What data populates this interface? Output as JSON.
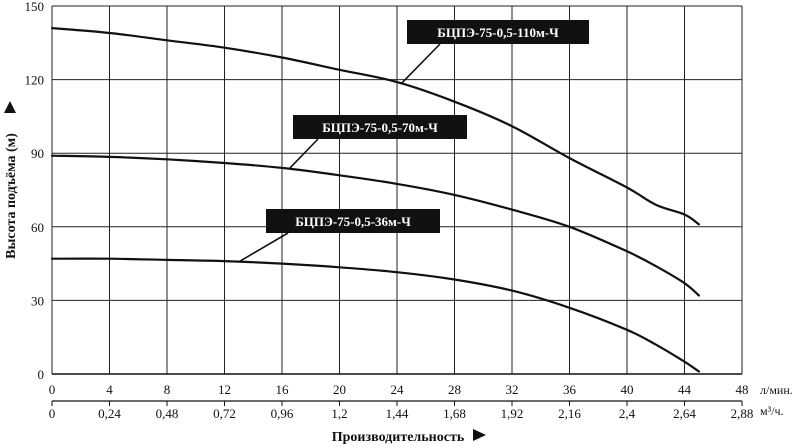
{
  "chart_data": {
    "type": "line",
    "title": "",
    "xlabel": "Производительность",
    "ylabel": "Высота подъёма (м)",
    "x_unit_primary": "л/мин.",
    "x_unit_secondary": "м³/ч.",
    "xlim": [
      0,
      48
    ],
    "ylim": [
      0,
      150
    ],
    "x_ticks": [
      0,
      4,
      8,
      12,
      16,
      20,
      24,
      28,
      32,
      36,
      40,
      44,
      48
    ],
    "x_ticks_secondary": [
      "0",
      "0,24",
      "0,48",
      "0,72",
      "0,96",
      "1,2",
      "1,44",
      "1,68",
      "1,92",
      "2,16",
      "2,4",
      "2,64",
      "2,88"
    ],
    "y_ticks": [
      0,
      30,
      60,
      90,
      120,
      150
    ],
    "grid": true,
    "series": [
      {
        "name": "БЦПЭ-75-0,5-110м-Ч",
        "color": "#111111",
        "x": [
          0,
          4,
          8,
          12,
          16,
          20,
          24,
          28,
          32,
          36,
          40,
          42,
          44,
          45
        ],
        "y": [
          141,
          139,
          136,
          133,
          129,
          124,
          119,
          111,
          101,
          88,
          76,
          69,
          65,
          61
        ]
      },
      {
        "name": "БЦПЭ-75-0,5-70м-Ч",
        "color": "#111111",
        "x": [
          0,
          4,
          8,
          12,
          16,
          20,
          24,
          28,
          32,
          36,
          40,
          42,
          44,
          45
        ],
        "y": [
          89,
          88.5,
          87.5,
          86,
          84,
          81,
          77.5,
          73,
          67,
          60,
          50,
          44,
          37,
          32
        ]
      },
      {
        "name": "БЦПЭ-75-0,5-36м-Ч",
        "color": "#111111",
        "x": [
          0,
          4,
          8,
          12,
          16,
          20,
          24,
          28,
          32,
          36,
          40,
          42,
          44,
          45
        ],
        "y": [
          47,
          47,
          46.5,
          46,
          45,
          43.5,
          41.5,
          38.5,
          34,
          27,
          18,
          12,
          5,
          1
        ]
      }
    ],
    "callouts": [
      {
        "text": "БЦПЭ-75-0,5-110м-Ч",
        "series": 0
      },
      {
        "text": "БЦПЭ-75-0,5-70м-Ч",
        "series": 1
      },
      {
        "text": "БЦПЭ-75-0,5-36м-Ч",
        "series": 2
      }
    ]
  }
}
